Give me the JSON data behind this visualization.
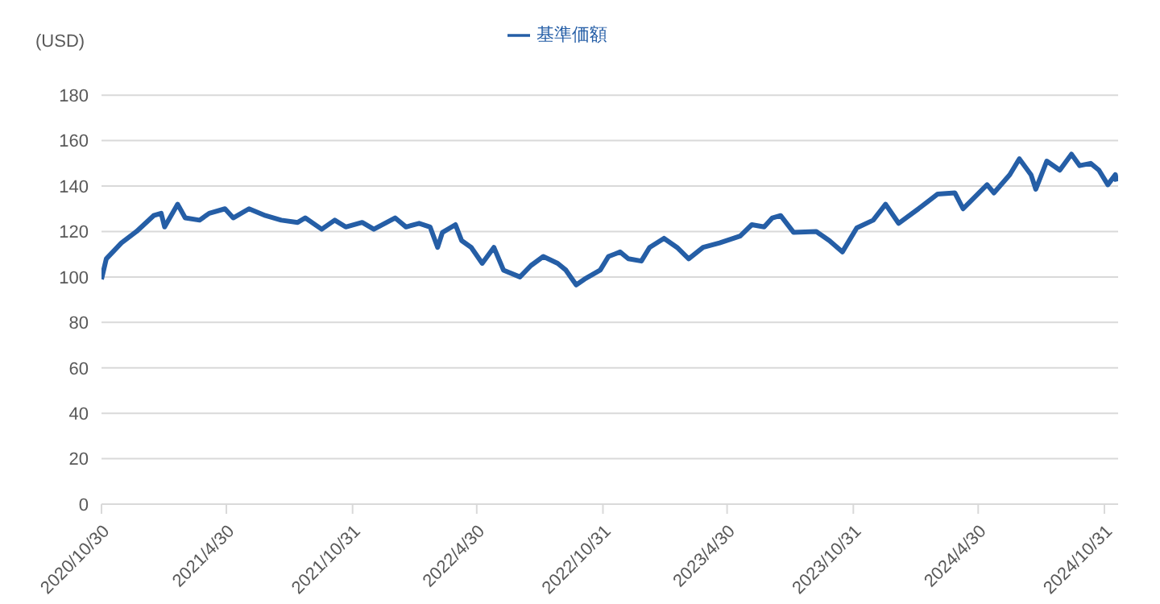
{
  "chart_data": {
    "type": "line",
    "ylabel": "(USD)",
    "legend": "top",
    "grid": "y",
    "line_style": "solid",
    "marker": "none",
    "xlim": [
      "2020-10-30",
      "2024-11-20"
    ],
    "xticks": [
      {
        "value": "2020-10-30",
        "label": "2020/10/30"
      },
      {
        "value": "2021-04-30",
        "label": "2021/4/30"
      },
      {
        "value": "2021-10-31",
        "label": "2021/10/31"
      },
      {
        "value": "2022-04-30",
        "label": "2022/4/30"
      },
      {
        "value": "2022-10-31",
        "label": "2022/10/31"
      },
      {
        "value": "2023-04-30",
        "label": "2023/4/30"
      },
      {
        "value": "2023-10-31",
        "label": "2023/10/31"
      },
      {
        "value": "2024-04-30",
        "label": "2024/4/30"
      },
      {
        "value": "2024-10-31",
        "label": "2024/10/31"
      }
    ],
    "ylim": [
      0,
      180
    ],
    "yticks": [
      0,
      20,
      40,
      60,
      80,
      100,
      120,
      140,
      160,
      180
    ],
    "x": [
      "2020-10-30",
      "2020-11-06",
      "2020-11-28",
      "2020-12-20",
      "2021-01-14",
      "2021-01-25",
      "2021-01-30",
      "2021-02-18",
      "2021-03-01",
      "2021-03-22",
      "2021-04-05",
      "2021-04-28",
      "2021-05-10",
      "2021-06-02",
      "2021-06-26",
      "2021-07-19",
      "2021-08-12",
      "2021-08-23",
      "2021-09-16",
      "2021-10-05",
      "2021-10-21",
      "2021-11-14",
      "2021-12-01",
      "2022-01-01",
      "2022-01-17",
      "2022-02-05",
      "2022-02-21",
      "2022-03-04",
      "2022-03-11",
      "2022-03-30",
      "2022-04-08",
      "2022-04-22",
      "2022-05-08",
      "2022-05-25",
      "2022-06-08",
      "2022-07-02",
      "2022-07-18",
      "2022-08-05",
      "2022-08-26",
      "2022-09-07",
      "2022-09-22",
      "2022-10-04",
      "2022-10-27",
      "2022-11-08",
      "2022-11-25",
      "2022-12-07",
      "2022-12-26",
      "2023-01-07",
      "2023-01-28",
      "2023-02-16",
      "2023-03-05",
      "2023-03-26",
      "2023-04-19",
      "2023-05-19",
      "2023-06-05",
      "2023-06-23",
      "2023-07-05",
      "2023-07-17",
      "2023-08-05",
      "2023-09-07",
      "2023-09-26",
      "2023-10-15",
      "2023-11-05",
      "2023-11-29",
      "2023-12-17",
      "2024-01-05",
      "2024-02-03",
      "2024-03-02",
      "2024-03-27",
      "2024-04-08",
      "2024-05-13",
      "2024-05-23",
      "2024-06-15",
      "2024-06-29",
      "2024-07-16",
      "2024-07-23",
      "2024-08-08",
      "2024-08-27",
      "2024-09-13",
      "2024-09-25",
      "2024-10-11",
      "2024-10-23",
      "2024-11-05",
      "2024-11-16",
      "2024-11-18"
    ],
    "series": [
      {
        "name": "基準価額",
        "color": "#255ea6",
        "values": [
          99,
          108,
          115,
          120,
          127,
          128,
          122,
          132,
          126,
          125,
          128,
          130,
          126,
          130,
          127,
          125,
          124,
          126,
          121,
          125,
          122,
          124,
          121,
          126,
          122,
          123.6,
          122,
          113,
          119.6,
          123,
          116,
          113,
          106,
          113,
          103,
          100,
          105,
          109,
          106,
          103,
          96.5,
          99,
          103,
          109,
          111,
          108,
          107,
          113,
          117,
          113,
          108,
          113,
          115,
          118,
          123,
          122,
          126,
          127,
          119.6,
          120,
          116,
          111,
          121.6,
          125,
          132,
          123.6,
          130,
          136.5,
          137,
          130,
          140.6,
          137,
          145,
          152,
          145,
          138.6,
          151,
          147,
          154,
          149,
          150,
          147,
          140.6,
          145,
          142
        ]
      }
    ]
  }
}
